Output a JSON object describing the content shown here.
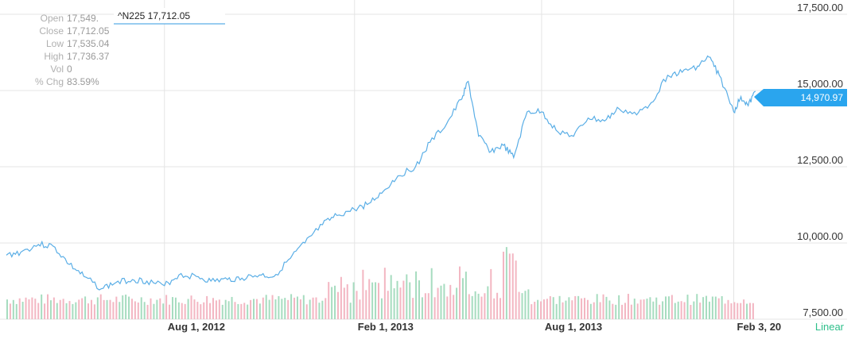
{
  "chart_data": {
    "type": "line",
    "ticker_label": "^N225 17,712.05",
    "info_panel": [
      {
        "key": "Open",
        "value": "17,549."
      },
      {
        "key": "Close",
        "value": "17,712.05"
      },
      {
        "key": "Low",
        "value": "17,535.04"
      },
      {
        "key": "High",
        "value": "17,736.37"
      },
      {
        "key": "Vol",
        "value": "0"
      },
      {
        "key": "% Chg",
        "value": "83.59%"
      }
    ],
    "y_tick_labels": [
      "17,500.00",
      "15,000.00",
      "12,500.00",
      "10,000.00",
      "7,500.00"
    ],
    "y_ticks": [
      17500,
      15000,
      12500,
      10000,
      7500
    ],
    "ylim": [
      7500,
      17500
    ],
    "x_tick_labels": [
      "Aug 1, 2012",
      "Feb 1, 2013",
      "Aug 1, 2013",
      "Feb 3, 20"
    ],
    "x_ticks": [
      "2012-08-01",
      "2013-02-01",
      "2013-08-01",
      "2014-02-03"
    ],
    "xlim": [
      "2012-03-01",
      "2014-02-28"
    ],
    "current_price_label": "14,970.97",
    "current_price": 14970.97,
    "scale_label": "Linear",
    "grid": true,
    "series": [
      {
        "color": "#5aaee6",
        "x": [
          "2012-03-01",
          "2012-03-15",
          "2012-04-01",
          "2012-04-15",
          "2012-05-01",
          "2012-05-15",
          "2012-06-01",
          "2012-06-15",
          "2012-07-01",
          "2012-07-15",
          "2012-08-01",
          "2012-08-15",
          "2012-09-01",
          "2012-09-15",
          "2012-10-01",
          "2012-10-15",
          "2012-11-01",
          "2012-11-15",
          "2012-12-01",
          "2012-12-15",
          "2013-01-01",
          "2013-01-15",
          "2013-02-01",
          "2013-02-15",
          "2013-03-01",
          "2013-03-15",
          "2013-04-01",
          "2013-04-15",
          "2013-05-01",
          "2013-05-15",
          "2013-05-22",
          "2013-06-01",
          "2013-06-13",
          "2013-06-25",
          "2013-07-05",
          "2013-07-18",
          "2013-08-01",
          "2013-08-15",
          "2013-09-01",
          "2013-09-15",
          "2013-10-01",
          "2013-10-15",
          "2013-11-01",
          "2013-11-15",
          "2013-12-01",
          "2013-12-15",
          "2013-12-30",
          "2014-01-10",
          "2014-01-20",
          "2014-02-03",
          "2014-02-10",
          "2014-02-17",
          "2014-02-24"
        ],
        "values": [
          9600,
          9700,
          9950,
          9900,
          9300,
          8900,
          8500,
          8700,
          8800,
          8750,
          8600,
          8950,
          8900,
          8750,
          8800,
          8850,
          8950,
          8900,
          9500,
          10000,
          10600,
          10900,
          11100,
          11300,
          11700,
          12200,
          12500,
          13300,
          13900,
          14700,
          15300,
          13500,
          13000,
          13200,
          12800,
          14300,
          14300,
          13700,
          13500,
          14100,
          14000,
          14400,
          14200,
          14600,
          15500,
          15600,
          15800,
          16100,
          15500,
          14300,
          14800,
          14500,
          14970.97
        ]
      }
    ],
    "volume": {
      "x_start": "2012-03-01",
      "x_end": "2014-02-21",
      "count": 240,
      "max": 1,
      "up_color": "#a6dcbf",
      "down_color": "#f3b6c2",
      "baseline_bars": 240
    }
  }
}
